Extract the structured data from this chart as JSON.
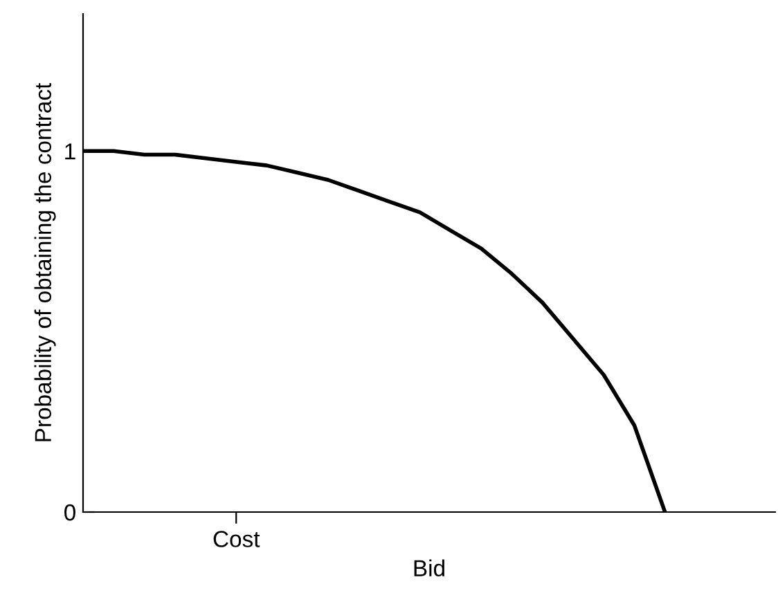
{
  "chart_data": {
    "type": "line",
    "xlabel": "Bid",
    "ylabel": "Probability of obtaining the contract",
    "categories": [
      null,
      null,
      null,
      null,
      null,
      "Cost",
      null,
      null,
      null,
      null,
      null,
      null,
      null,
      null,
      null,
      null,
      null,
      null,
      null,
      null,
      null,
      null,
      null
    ],
    "values": [
      1.0,
      1.0,
      0.99,
      0.99,
      0.98,
      0.97,
      0.96,
      0.94,
      0.92,
      0.89,
      0.86,
      0.83,
      0.78,
      0.73,
      0.66,
      0.58,
      0.48,
      0.38,
      0.24,
      0,
      null,
      null,
      null
    ],
    "color": "#000000",
    "ylim": [
      0,
      1.38
    ],
    "yticks": [
      0,
      1
    ],
    "grid": false,
    "legend": false,
    "marker": "none",
    "line_style": "solid"
  }
}
